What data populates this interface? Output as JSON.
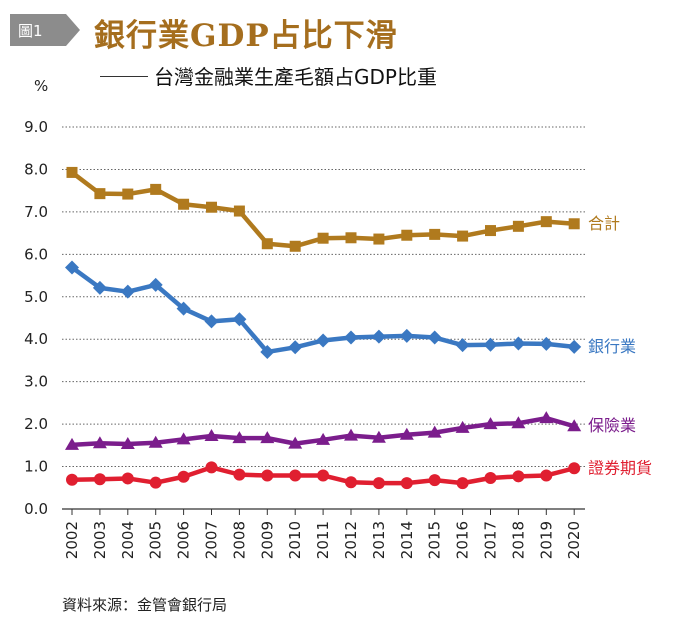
{
  "badge": "圖1",
  "title": "銀行業GDP占比下滑",
  "subtitle": "台灣金融業生產毛額占GDP比重",
  "unit": "%",
  "source": "資料來源：金管會銀行局",
  "chart_data": {
    "type": "line",
    "title": "銀行業GDP占比下滑",
    "subtitle": "台灣金融業生產毛額占GDP比重",
    "ylabel": "%",
    "ylim": [
      0,
      9
    ],
    "yticks": [
      "0.0",
      "1.0",
      "2.0",
      "3.0",
      "4.0",
      "5.0",
      "6.0",
      "7.0",
      "8.0",
      "9.0"
    ],
    "grid": true,
    "x": [
      "2002",
      "2003",
      "2004",
      "2005",
      "2006",
      "2007",
      "2008",
      "2009",
      "2010",
      "2011",
      "2012",
      "2013",
      "2014",
      "2015",
      "2016",
      "2017",
      "2018",
      "2019",
      "2020"
    ],
    "series": [
      {
        "name": "合計",
        "color": "#b07a1e",
        "marker": "square",
        "values": [
          7.93,
          7.43,
          7.42,
          7.53,
          7.18,
          7.11,
          7.02,
          6.25,
          6.19,
          6.38,
          6.39,
          6.36,
          6.45,
          6.47,
          6.43,
          6.56,
          6.66,
          6.77,
          6.72
        ]
      },
      {
        "name": "銀行業",
        "color": "#3a78c2",
        "marker": "diamond",
        "values": [
          5.69,
          5.21,
          5.12,
          5.28,
          4.72,
          4.42,
          4.47,
          3.7,
          3.81,
          3.97,
          4.04,
          4.06,
          4.08,
          4.04,
          3.86,
          3.87,
          3.9,
          3.89,
          3.82
        ]
      },
      {
        "name": "保險業",
        "color": "#7b1d8c",
        "marker": "triangle",
        "values": [
          1.51,
          1.55,
          1.53,
          1.56,
          1.64,
          1.72,
          1.67,
          1.67,
          1.54,
          1.63,
          1.73,
          1.68,
          1.75,
          1.8,
          1.91,
          2.0,
          2.02,
          2.14,
          1.95
        ]
      },
      {
        "name": "證券期貨",
        "color": "#e01f30",
        "marker": "circle",
        "values": [
          0.69,
          0.7,
          0.72,
          0.62,
          0.76,
          0.98,
          0.81,
          0.79,
          0.79,
          0.79,
          0.63,
          0.61,
          0.61,
          0.68,
          0.61,
          0.73,
          0.77,
          0.79,
          0.96
        ]
      }
    ]
  }
}
